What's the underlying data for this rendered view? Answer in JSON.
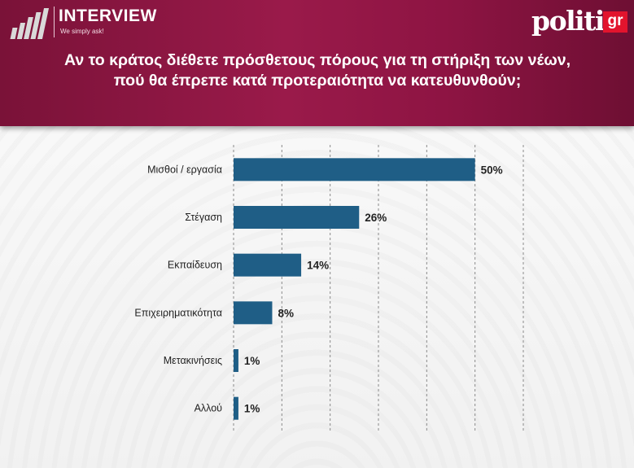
{
  "header": {
    "brand_title": "INTERVIEW",
    "brand_tagline": "We simply ask!",
    "partner_logo_text": "politic",
    "partner_logo_suffix": "gr",
    "question": "Αν το κράτος διέθετε πρόσθετους πόρους για τη στήριξη των νέων, πού θα έπρεπε κατά προτεραιότητα να κατευθυνθούν;"
  },
  "colors": {
    "header_bg": "#8e1443",
    "bar": "#1f5e86",
    "partner_accent": "#e2142d"
  },
  "icons": [
    "bars-logo-icon"
  ],
  "chart_data": {
    "type": "bar",
    "orientation": "horizontal",
    "categories": [
      "Μισθοί / εργασία",
      "Στέγαση",
      "Εκπαίδευση",
      "Επιχειρηματικότητα",
      "Μετακινήσεις",
      "Αλλού"
    ],
    "values": [
      50,
      26,
      14,
      8,
      1,
      1
    ],
    "value_labels": [
      "50%",
      "26%",
      "14%",
      "8%",
      "1%",
      "1%"
    ],
    "title": "",
    "xlabel": "",
    "ylabel": "",
    "xlim": [
      0,
      60
    ],
    "grid": "vertical-dashed",
    "legend": "none"
  }
}
